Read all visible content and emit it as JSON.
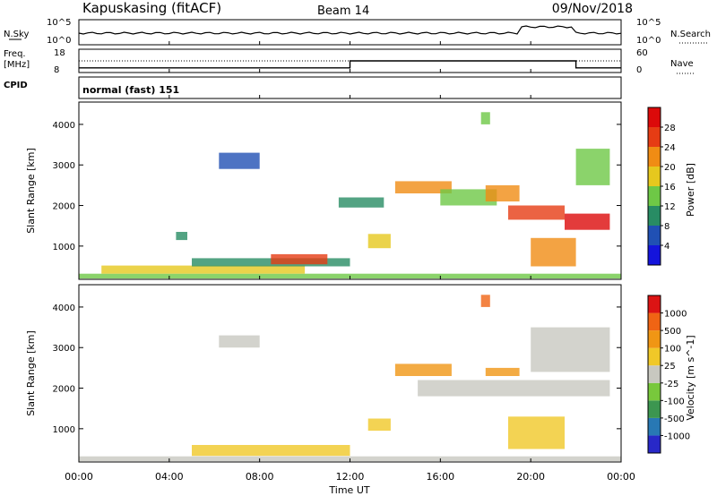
{
  "header": {
    "station": "Kapuskasing (fitACF)",
    "beam": "Beam 14",
    "date": "09/Nov/2018"
  },
  "noise_panel": {
    "left_label": "N.Sky",
    "left_ticks": [
      "10^5",
      "10^0"
    ],
    "right_label": "N.Search",
    "right_ticks": [
      "10^5",
      "10^0"
    ]
  },
  "freq_panel": {
    "left_label_1": "Freq.",
    "left_label_2": "[MHz]",
    "left_ticks": [
      "18",
      "8"
    ],
    "right_label": "Nave",
    "right_ticks": [
      "60",
      "0"
    ],
    "segments": [
      {
        "from_hour": 0,
        "to_hour": 12,
        "freq_mhz": 10
      },
      {
        "from_hour": 12,
        "to_hour": 22,
        "freq_mhz": 13
      },
      {
        "from_hour": 22,
        "to_hour": 24,
        "freq_mhz": 10
      }
    ],
    "nave_dotted": 13
  },
  "cpid": {
    "label": "CPID",
    "value": "normal (fast) 151"
  },
  "range_axis": {
    "label": "Slant Range [km]",
    "ticks": [
      "1000",
      "2000",
      "3000",
      "4000"
    ]
  },
  "time_axis": {
    "label": "Time UT",
    "ticks": [
      "00:00",
      "04:00",
      "08:00",
      "12:00",
      "16:00",
      "20:00",
      "00:00"
    ]
  },
  "power_colorbar": {
    "label": "Power [dB]",
    "ticks": [
      "4",
      "8",
      "12",
      "16",
      "20",
      "24",
      "28"
    ],
    "colors": [
      "#1414dc",
      "#2050b4",
      "#288c64",
      "#6ec846",
      "#e6c81e",
      "#f08c14",
      "#e63c14",
      "#dc0a0a"
    ]
  },
  "velocity_colorbar": {
    "label": "Velocity [m s^-1]",
    "ticks": [
      "1000",
      "500",
      "100",
      "25",
      "-25",
      "-100",
      "-500",
      "-1000"
    ],
    "colors": [
      "#2828c8",
      "#2878b4",
      "#3c9650",
      "#78c83c",
      "#c8c8c0",
      "#f0c828",
      "#f09614",
      "#f06414",
      "#dc1414"
    ]
  },
  "chart_data": [
    {
      "type": "heatmap",
      "title": "Power",
      "xlabel": "Time UT",
      "ylabel": "Slant Range [km]",
      "xlim": [
        0,
        24
      ],
      "ylim": [
        180,
        4550
      ],
      "colorbar": "Power [dB]",
      "regions": [
        {
          "t0": 0.0,
          "t1": 24.0,
          "r0": 200,
          "r1": 320,
          "value": 12
        },
        {
          "t0": 1.0,
          "t1": 10.0,
          "r0": 320,
          "r1": 520,
          "value": 16
        },
        {
          "t0": 5.0,
          "t1": 12.0,
          "r0": 500,
          "r1": 700,
          "value": 10
        },
        {
          "t0": 8.5,
          "t1": 11.0,
          "r0": 550,
          "r1": 800,
          "value": 24
        },
        {
          "t0": 6.2,
          "t1": 8.0,
          "r0": 2900,
          "r1": 3300,
          "value": 6
        },
        {
          "t0": 4.3,
          "t1": 4.8,
          "r0": 1150,
          "r1": 1350,
          "value": 10
        },
        {
          "t0": 12.8,
          "t1": 13.8,
          "r0": 950,
          "r1": 1300,
          "value": 16
        },
        {
          "t0": 11.5,
          "t1": 13.5,
          "r0": 1950,
          "r1": 2200,
          "value": 10
        },
        {
          "t0": 14.0,
          "t1": 16.5,
          "r0": 2300,
          "r1": 2600,
          "value": 20
        },
        {
          "t0": 16.0,
          "t1": 18.5,
          "r0": 2000,
          "r1": 2400,
          "value": 14
        },
        {
          "t0": 18.0,
          "t1": 19.5,
          "r0": 2100,
          "r1": 2500,
          "value": 22
        },
        {
          "t0": 19.0,
          "t1": 21.5,
          "r0": 1650,
          "r1": 2000,
          "value": 26
        },
        {
          "t0": 21.5,
          "t1": 23.5,
          "r0": 1400,
          "r1": 1800,
          "value": 28
        },
        {
          "t0": 20.0,
          "t1": 22.0,
          "r0": 500,
          "r1": 1200,
          "value": 22
        },
        {
          "t0": 17.8,
          "t1": 18.2,
          "r0": 4000,
          "r1": 4300,
          "value": 14
        },
        {
          "t0": 22.0,
          "t1": 23.5,
          "r0": 2500,
          "r1": 3400,
          "value": 12
        }
      ]
    },
    {
      "type": "heatmap",
      "title": "Velocity",
      "xlabel": "Time UT",
      "ylabel": "Slant Range [km]",
      "xlim": [
        0,
        24
      ],
      "ylim": [
        180,
        4550
      ],
      "colorbar": "Velocity [m s^-1]",
      "regions": [
        {
          "t0": 0.0,
          "t1": 24.0,
          "r0": 200,
          "r1": 320,
          "value": 0
        },
        {
          "t0": 5.0,
          "t1": 12.0,
          "r0": 330,
          "r1": 600,
          "value": -100
        },
        {
          "t0": 12.8,
          "t1": 13.8,
          "r0": 950,
          "r1": 1250,
          "value": -100
        },
        {
          "t0": 6.2,
          "t1": 8.0,
          "r0": 3000,
          "r1": 3300,
          "value": 0
        },
        {
          "t0": 14.0,
          "t1": 16.5,
          "r0": 2300,
          "r1": 2600,
          "value": -500
        },
        {
          "t0": 18.0,
          "t1": 19.5,
          "r0": 2300,
          "r1": 2500,
          "value": -500
        },
        {
          "t0": 17.8,
          "t1": 18.2,
          "r0": 4000,
          "r1": 4300,
          "value": -1000
        },
        {
          "t0": 15.0,
          "t1": 23.5,
          "r0": 1800,
          "r1": 2200,
          "value": 0
        },
        {
          "t0": 20.0,
          "t1": 23.5,
          "r0": 2400,
          "r1": 3500,
          "value": 0
        },
        {
          "t0": 19.0,
          "t1": 21.5,
          "r0": 500,
          "r1": 1300,
          "value": -100
        }
      ]
    }
  ]
}
